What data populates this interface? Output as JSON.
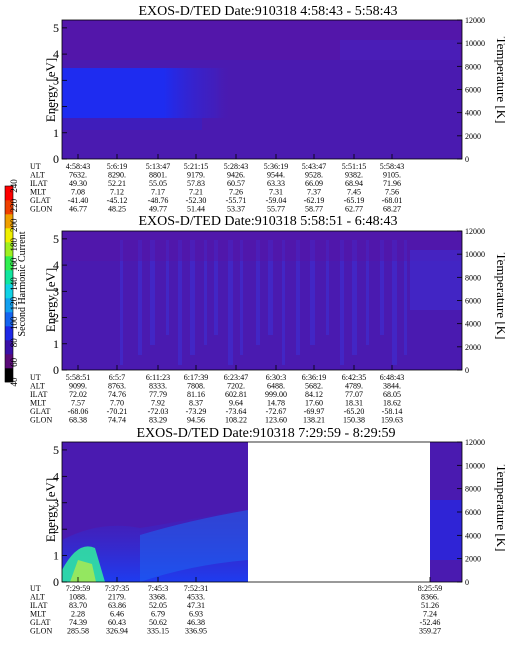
{
  "colorbar": {
    "label": "Second Harmonic Current",
    "ticks": [
      "40",
      "60",
      "80",
      "100",
      "120",
      "140",
      "160",
      "180",
      "200",
      "220",
      "240"
    ],
    "colors": [
      "#000000",
      "#5a0a78",
      "#3a10a8",
      "#1e28e6",
      "#1464f0",
      "#12a0f0",
      "#10d2e6",
      "#10e6a0",
      "#30f050",
      "#a0f020",
      "#f0f000",
      "#f0a000",
      "#f04000",
      "#ff0000"
    ]
  },
  "panels": [
    {
      "title": "EXOS-D/TED   Date:910318   4:58:43 - 5:58:43",
      "ylabel": "Energy [eV]",
      "y2label": "Temperature [K]",
      "yticks": [
        "0",
        "1",
        "2",
        "3",
        "4",
        "5"
      ],
      "y2ticks": [
        "0",
        "2000",
        "4000",
        "6000",
        "8000",
        "10000",
        "12000"
      ],
      "ephemeris_labels": [
        "UT",
        "ALT",
        "ILAT",
        "MLT",
        "GLAT",
        "GLON"
      ],
      "columns": [
        {
          "UT": "4:58:43",
          "ALT": "7632.",
          "ILAT": "49.30",
          "MLT": "7.08",
          "GLAT": "-41.40",
          "GLON": "46.77"
        },
        {
          "UT": "5:6:19",
          "ALT": "8290.",
          "ILAT": "52.21",
          "MLT": "7.12",
          "GLAT": "-45.12",
          "GLON": "48.25"
        },
        {
          "UT": "5:13:47",
          "ALT": "8801.",
          "ILAT": "55.05",
          "MLT": "7.17",
          "GLAT": "-48.76",
          "GLON": "49.77"
        },
        {
          "UT": "5:21:15",
          "ALT": "9179.",
          "ILAT": "57.83",
          "MLT": "7.21",
          "GLAT": "-52.30",
          "GLON": "51.44"
        },
        {
          "UT": "5:28:43",
          "ALT": "9426.",
          "ILAT": "60.57",
          "MLT": "7.26",
          "GLAT": "-55.71",
          "GLON": "53.37"
        },
        {
          "UT": "5:36:19",
          "ALT": "9544.",
          "ILAT": "63.33",
          "MLT": "7.31",
          "GLAT": "-59.04",
          "GLON": "55.77"
        },
        {
          "UT": "5:43:47",
          "ALT": "9528.",
          "ILAT": "66.09",
          "MLT": "7.37",
          "GLAT": "-62.19",
          "GLON": "58.77"
        },
        {
          "UT": "5:51:15",
          "ALT": "9382.",
          "ILAT": "68.94",
          "MLT": "7.45",
          "GLAT": "-65.19",
          "GLON": "62.77"
        },
        {
          "UT": "5:58:43",
          "ALT": "9105.",
          "ILAT": "71.96",
          "MLT": "7.56",
          "GLAT": "-68.01",
          "GLON": "68.27"
        }
      ]
    },
    {
      "title": "EXOS-D/TED   Date:910318   5:58:51 - 6:48:43",
      "ylabel": "Energy [eV]",
      "y2label": "Temperature [K]",
      "yticks": [
        "0",
        "1",
        "2",
        "3",
        "4",
        "5"
      ],
      "y2ticks": [
        "0",
        "2000",
        "4000",
        "6000",
        "8000",
        "10000",
        "12000"
      ],
      "ephemeris_labels": [
        "UT",
        "ALT",
        "ILAT",
        "MLT",
        "GLAT",
        "GLON"
      ],
      "columns": [
        {
          "UT": "5:58:51",
          "ALT": "9099.",
          "ILAT": "72.02",
          "MLT": "7.57",
          "GLAT": "-68.06",
          "GLON": "68.38"
        },
        {
          "UT": "6:5:7",
          "ALT": "8763.",
          "ILAT": "74.76",
          "MLT": "7.70",
          "GLAT": "-70.21",
          "GLON": "74.74"
        },
        {
          "UT": "6:11:23",
          "ALT": "8333.",
          "ILAT": "77.79",
          "MLT": "7.92",
          "GLAT": "-72.03",
          "GLON": "83.29"
        },
        {
          "UT": "6:17:39",
          "ALT": "7808.",
          "ILAT": "81.16",
          "MLT": "8.37",
          "GLAT": "-73.29",
          "GLON": "94.56"
        },
        {
          "UT": "6:23:47",
          "ALT": "7202.",
          "ILAT": "602.81",
          "MLT": "9.64",
          "GLAT": "-73.64",
          "GLON": "108.22"
        },
        {
          "UT": "6:30:3",
          "ALT": "6488.",
          "ILAT": "999.00",
          "MLT": "14.78",
          "GLAT": "-72.67",
          "GLON": "123.60"
        },
        {
          "UT": "6:36:19",
          "ALT": "5682.",
          "ILAT": "84.12",
          "MLT": "17.60",
          "GLAT": "-69.97",
          "GLON": "138.21"
        },
        {
          "UT": "6:42:35",
          "ALT": "4789.",
          "ILAT": "77.07",
          "MLT": "18.31",
          "GLAT": "-65.20",
          "GLON": "150.38"
        },
        {
          "UT": "6:48:43",
          "ALT": "3844.",
          "ILAT": "68.05",
          "MLT": "18.62",
          "GLAT": "-58.14",
          "GLON": "159.63"
        }
      ]
    },
    {
      "title": "EXOS-D/TED   Date:910318   7:29:59 - 8:29:59",
      "ylabel": "Energy [eV]",
      "y2label": "Temperature [K]",
      "yticks": [
        "0",
        "1",
        "2",
        "3",
        "4",
        "5"
      ],
      "y2ticks": [
        "0",
        "2000",
        "4000",
        "6000",
        "8000",
        "10000",
        "12000"
      ],
      "ephemeris_labels": [
        "UT",
        "ALT",
        "ILAT",
        "MLT",
        "GLAT",
        "GLON"
      ],
      "columns": [
        {
          "UT": "7:29:59",
          "ALT": "1088.",
          "ILAT": "83.70",
          "MLT": "2.28",
          "GLAT": "74.39",
          "GLON": "285.58"
        },
        {
          "UT": "7:37:35",
          "ALT": "2179.",
          "ILAT": "63.86",
          "MLT": "6.46",
          "GLAT": "60.43",
          "GLON": "326.94"
        },
        {
          "UT": "7:45:3",
          "ALT": "3368.",
          "ILAT": "52.05",
          "MLT": "6.79",
          "GLAT": "50.62",
          "GLON": "335.15"
        },
        {
          "UT": "7:52:31",
          "ALT": "4533.",
          "ILAT": "47.31",
          "MLT": "6.93",
          "GLAT": "46.38",
          "GLON": "336.95"
        },
        {
          "UT": "8:25:59",
          "ALT": "8366.",
          "ILAT": "51.26",
          "MLT": "7.24",
          "GLAT": "-52.46",
          "GLON": "359.27"
        }
      ]
    }
  ],
  "chart_data": [
    {
      "type": "heatmap",
      "title": "EXOS-D/TED   Date:910318   4:58:43 - 5:58:43",
      "ylabel": "Energy [eV]",
      "y2label": "Temperature [K]",
      "ylim": [
        0,
        5
      ],
      "y2lim": [
        0,
        12000
      ],
      "x": [
        "4:58:43",
        "5:6:19",
        "5:13:47",
        "5:21:15",
        "5:28:43",
        "5:36:19",
        "5:43:47",
        "5:51:15",
        "5:58:43"
      ],
      "colorbar_range": [
        40,
        240
      ]
    },
    {
      "type": "heatmap",
      "title": "EXOS-D/TED   Date:910318   5:58:51 - 6:48:43",
      "ylabel": "Energy [eV]",
      "y2label": "Temperature [K]",
      "ylim": [
        0,
        5
      ],
      "y2lim": [
        0,
        12000
      ],
      "x": [
        "5:58:51",
        "6:5:7",
        "6:11:23",
        "6:17:39",
        "6:23:47",
        "6:30:3",
        "6:36:19",
        "6:42:35",
        "6:48:43"
      ],
      "colorbar_range": [
        40,
        240
      ]
    },
    {
      "type": "heatmap",
      "title": "EXOS-D/TED   Date:910318   7:29:59 - 8:29:59",
      "ylabel": "Energy [eV]",
      "y2label": "Temperature [K]",
      "ylim": [
        0,
        5
      ],
      "y2lim": [
        0,
        12000
      ],
      "x": [
        "7:29:59",
        "7:37:35",
        "7:45:3",
        "7:52:31",
        "8:25:59"
      ],
      "colorbar_range": [
        40,
        240
      ]
    }
  ]
}
